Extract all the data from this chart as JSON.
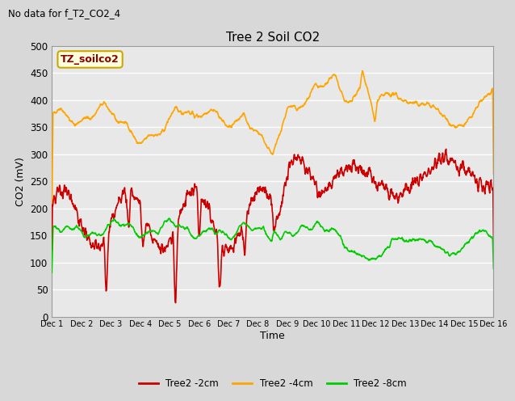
{
  "title": "Tree 2 Soil CO2",
  "no_data_text": "No data for f_T2_CO2_4",
  "ylabel": "CO2 (mV)",
  "xlabel": "Time",
  "legend_label": "TZ_soilco2",
  "xlim": [
    0,
    15
  ],
  "ylim": [
    0,
    500
  ],
  "yticks": [
    0,
    50,
    100,
    150,
    200,
    250,
    300,
    350,
    400,
    450,
    500
  ],
  "xtick_labels": [
    "Dec 1",
    "Dec 2",
    "Dec 3",
    "Dec 4",
    "Dec 5",
    "Dec 6",
    "Dec 7",
    "Dec 8",
    "Dec 9",
    "Dec 10",
    "Dec 11",
    "Dec 12",
    "Dec 13",
    "Dec 14",
    "Dec 15",
    "Dec 16"
  ],
  "bg_color": "#e8e8e8",
  "grid_color": "#ffffff",
  "color_red": "#cc0000",
  "color_orange": "#ffa500",
  "color_green": "#00cc00",
  "line_labels": [
    "Tree2 -2cm",
    "Tree2 -4cm",
    "Tree2 -8cm"
  ]
}
